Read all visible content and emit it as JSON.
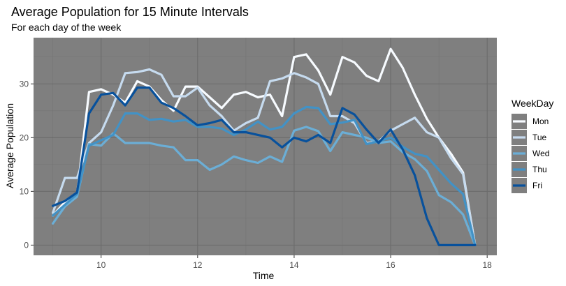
{
  "chart_data": {
    "type": "line",
    "title": "Average Population for 15 Minute Intervals",
    "subtitle": "For each day of the week",
    "xlabel": "Time",
    "ylabel": "Average Population",
    "xlim": [
      8.6,
      18.2
    ],
    "ylim": [
      -1.9,
      38.6
    ],
    "x_ticks": [
      10,
      12,
      14,
      16,
      18
    ],
    "y_ticks": [
      0,
      10,
      20,
      30
    ],
    "grid": true,
    "panel_color": "#7f7f7f",
    "legend": {
      "title": "WeekDay",
      "placement": "right"
    },
    "x": [
      9.0,
      9.25,
      9.5,
      9.75,
      10.0,
      10.25,
      10.5,
      10.75,
      11.0,
      11.25,
      11.5,
      11.75,
      12.0,
      12.25,
      12.5,
      12.75,
      13.0,
      13.25,
      13.5,
      13.75,
      14.0,
      14.25,
      14.5,
      14.75,
      15.0,
      15.25,
      15.5,
      15.75,
      16.0,
      16.25,
      16.5,
      16.75,
      17.0,
      17.25,
      17.5,
      17.75
    ],
    "series": [
      {
        "name": "Mon",
        "color": "#f7fbff",
        "values": [
          5.5,
          8,
          9.5,
          28.5,
          29,
          28,
          26.5,
          30.5,
          29.5,
          27,
          25,
          29.5,
          29.5,
          27.5,
          25.5,
          28,
          28.5,
          27.5,
          28,
          24,
          35,
          35.5,
          32.5,
          28,
          35,
          34,
          31.5,
          30.5,
          36.5,
          33,
          28,
          23.5,
          20,
          17,
          13.5,
          0
        ]
      },
      {
        "name": "Tue",
        "color": "#c6dbef",
        "values": [
          6,
          12.5,
          12.5,
          19,
          21,
          26,
          32,
          32.2,
          32.7,
          31.7,
          27.7,
          27.7,
          29.3,
          26,
          24,
          21.3,
          22.7,
          23.7,
          30.5,
          31,
          32,
          31.2,
          30,
          24,
          24,
          22.7,
          19,
          19.3,
          21.3,
          22.5,
          23.7,
          21,
          20,
          16.2,
          13.2,
          0
        ]
      },
      {
        "name": "Wed",
        "color": "#6baed6",
        "values": [
          4,
          7.2,
          9,
          18.8,
          18.5,
          20.8,
          19,
          19,
          19,
          18.5,
          18.2,
          15.8,
          15.8,
          14,
          15,
          16.5,
          15.8,
          15.3,
          16.5,
          15.5,
          21.3,
          22,
          21.2,
          17.5,
          21,
          20.5,
          20,
          19,
          19.3,
          17.3,
          16,
          13.8,
          9.3,
          8,
          5.7,
          0
        ]
      },
      {
        "name": "Thu",
        "color": "#4292c6",
        "values": [
          5.5,
          7.5,
          9.5,
          18.5,
          19.5,
          20.5,
          24.5,
          24.5,
          23.3,
          23.5,
          23,
          23.3,
          22,
          22,
          21.7,
          20.5,
          21.5,
          23,
          21.5,
          22,
          24.5,
          25.7,
          25.5,
          22.5,
          22.8,
          23.3,
          18.8,
          19.3,
          20,
          18.3,
          17,
          16.5,
          14,
          11.5,
          9.5,
          0
        ]
      },
      {
        "name": "Fri",
        "color": "#08519c",
        "values": [
          7.3,
          8.2,
          9.8,
          24.5,
          28,
          28.3,
          26,
          29.3,
          29.3,
          26.5,
          25.5,
          24,
          22.3,
          22.7,
          23.3,
          21,
          21,
          20.5,
          20,
          18.2,
          20,
          19.3,
          20.5,
          19,
          25.5,
          24.3,
          21.5,
          19,
          21.5,
          17.8,
          13,
          5,
          0,
          0,
          0,
          0
        ]
      }
    ]
  }
}
